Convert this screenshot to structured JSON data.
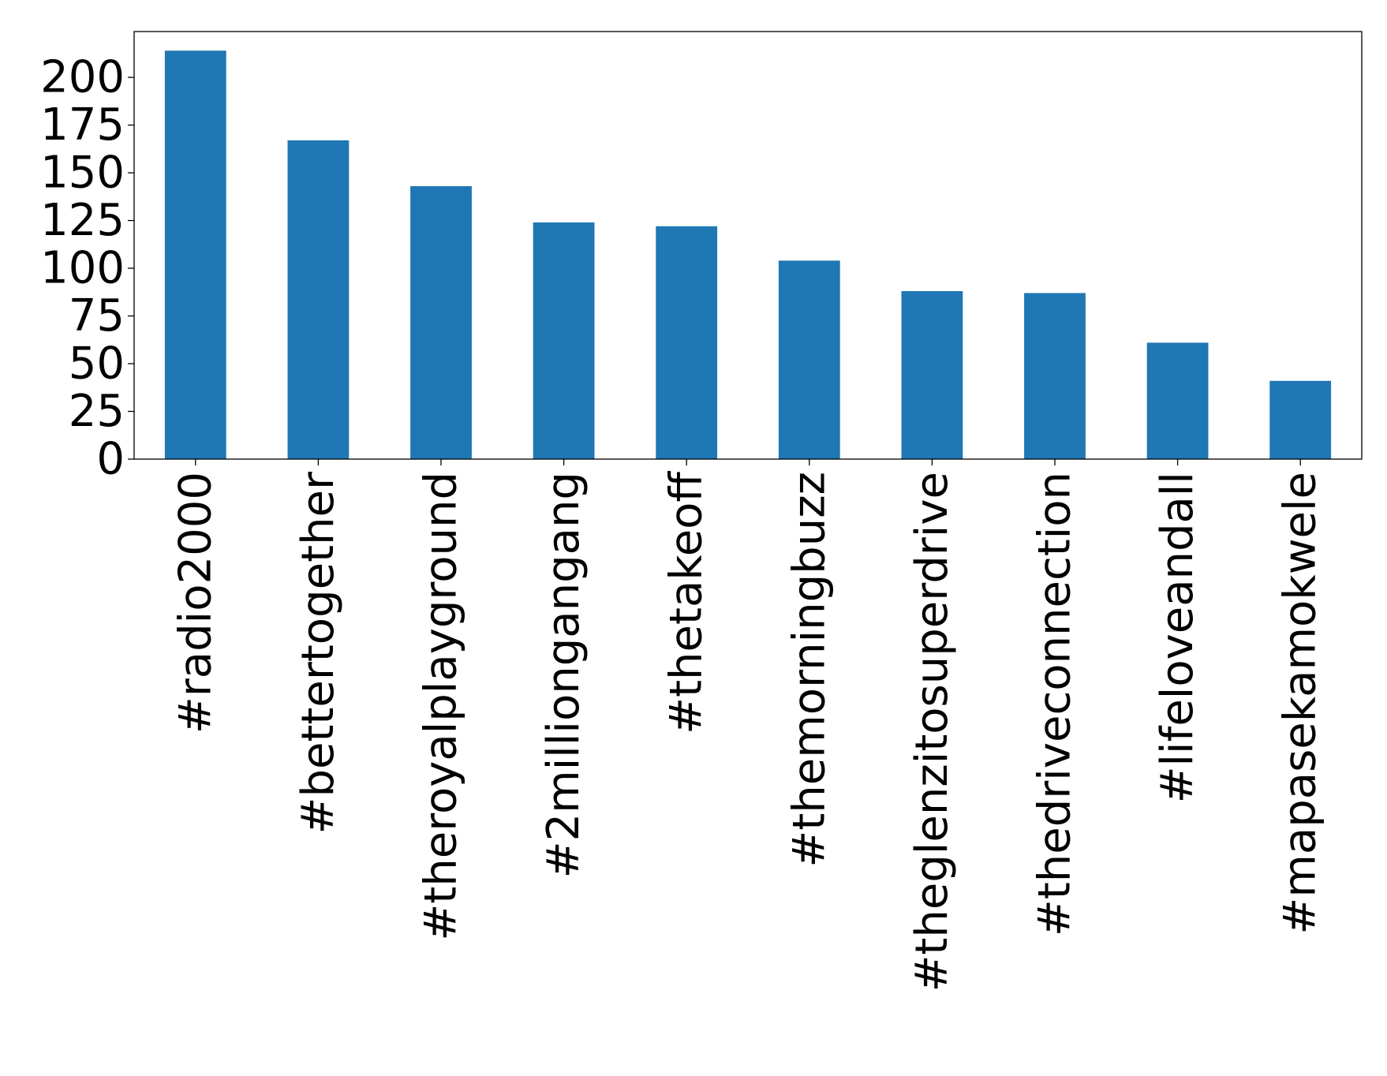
{
  "chart_data": {
    "type": "bar",
    "title": "",
    "xlabel": "",
    "ylabel": "",
    "categories": [
      "#radio2000",
      "#bettertogether",
      "#theroyalplayground",
      "#2milliongangang",
      "#thetakeoff",
      "#themorningbuzz",
      "#theglenzitosuperdrive",
      "#thedriveconnection",
      "#lifeloveandall",
      "#mapasekamokwele"
    ],
    "values": [
      214,
      167,
      143,
      124,
      122,
      104,
      88,
      87,
      61,
      41
    ],
    "ylim": [
      0,
      224
    ],
    "yticks": [
      0,
      25,
      50,
      75,
      100,
      125,
      150,
      175,
      200
    ],
    "ytick_labels": [
      "0",
      "25",
      "50",
      "75",
      "100",
      "125",
      "150",
      "175",
      "200"
    ],
    "grid": false,
    "legend": "none",
    "bar_color": "#1f77b4"
  }
}
